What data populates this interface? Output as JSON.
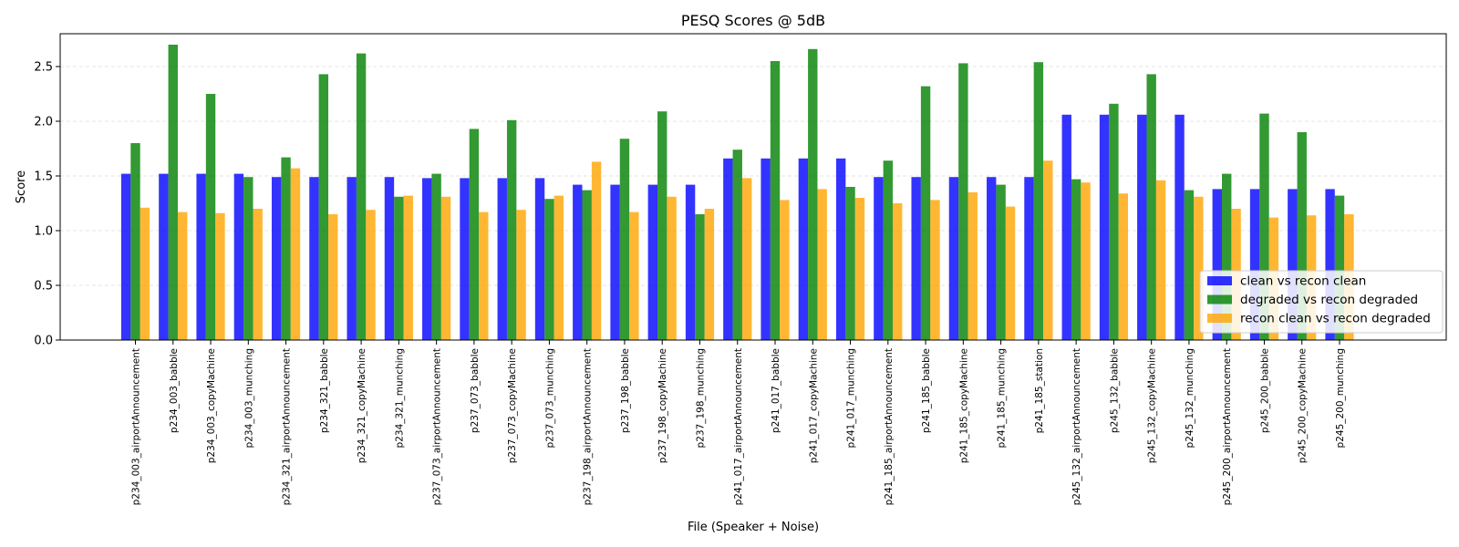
{
  "chart_data": {
    "type": "bar",
    "title": "PESQ Scores @ 5dB",
    "xlabel": "File (Speaker + Noise)",
    "ylabel": "Score",
    "ylim": [
      0,
      2.8
    ],
    "yticks": [
      "0.0",
      "0.5",
      "1.0",
      "1.5",
      "2.0",
      "2.5"
    ],
    "grid": "y-dashed",
    "legend_position": "bottom-right",
    "categories": [
      "p234_003_airportAnnouncement",
      "p234_003_babble",
      "p234_003_copyMachine",
      "p234_003_munching",
      "p234_321_airportAnnouncement",
      "p234_321_babble",
      "p234_321_copyMachine",
      "p234_321_munching",
      "p237_073_airportAnnouncement",
      "p237_073_babble",
      "p237_073_copyMachine",
      "p237_073_munching",
      "p237_198_airportAnnouncement",
      "p237_198_babble",
      "p237_198_copyMachine",
      "p237_198_munching",
      "p241_017_airportAnnouncement",
      "p241_017_babble",
      "p241_017_copyMachine",
      "p241_017_munching",
      "p241_185_airportAnnouncement",
      "p241_185_babble",
      "p241_185_copyMachine",
      "p241_185_munching",
      "p241_185_station",
      "p245_132_airportAnnouncement",
      "p245_132_babble",
      "p245_132_copyMachine",
      "p245_132_munching",
      "p245_200_airportAnnouncement",
      "p245_200_babble",
      "p245_200_copyMachine",
      "p245_200_munching"
    ],
    "series": [
      {
        "name": "clean vs recon clean",
        "color": "#0000ff",
        "values": [
          1.52,
          1.52,
          1.52,
          1.52,
          1.49,
          1.49,
          1.49,
          1.49,
          1.48,
          1.48,
          1.48,
          1.48,
          1.42,
          1.42,
          1.42,
          1.42,
          1.66,
          1.66,
          1.66,
          1.66,
          1.49,
          1.49,
          1.49,
          1.49,
          1.49,
          2.06,
          2.06,
          2.06,
          2.06,
          1.38,
          1.38,
          1.38,
          1.38
        ]
      },
      {
        "name": "degraded vs recon degraded",
        "color": "#008000",
        "values": [
          1.8,
          2.7,
          2.25,
          1.49,
          1.67,
          2.43,
          2.62,
          1.31,
          1.52,
          1.93,
          2.01,
          1.29,
          1.37,
          1.84,
          2.09,
          1.15,
          1.74,
          2.55,
          2.66,
          1.4,
          1.64,
          2.32,
          2.53,
          1.42,
          2.54,
          1.47,
          2.16,
          2.43,
          1.37,
          1.52,
          2.07,
          1.9,
          1.32
        ]
      },
      {
        "name": "recon clean vs recon degraded",
        "color": "#ffa500",
        "values": [
          1.21,
          1.17,
          1.16,
          1.2,
          1.57,
          1.15,
          1.19,
          1.32,
          1.31,
          1.17,
          1.19,
          1.32,
          1.63,
          1.17,
          1.31,
          1.2,
          1.48,
          1.28,
          1.38,
          1.3,
          1.25,
          1.28,
          1.35,
          1.22,
          1.64,
          1.44,
          1.34,
          1.46,
          1.31,
          1.2,
          1.12,
          1.14,
          1.15
        ]
      }
    ]
  }
}
